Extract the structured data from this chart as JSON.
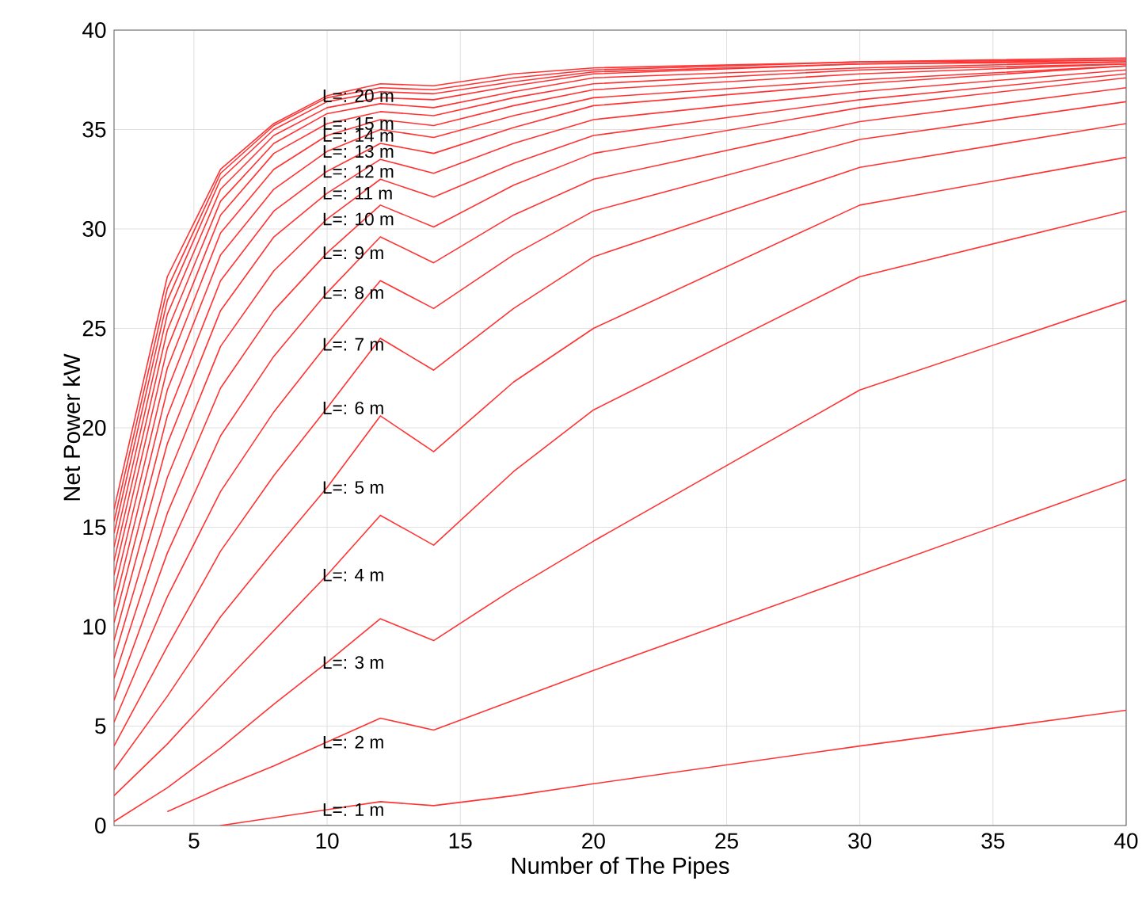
{
  "chart_data": {
    "type": "line",
    "xlabel": "Number of The Pipes",
    "ylabel": "Net Power kW",
    "xlim": [
      2,
      40
    ],
    "xticks": [
      5,
      10,
      15,
      20,
      25,
      30,
      35,
      40
    ],
    "ylim": [
      0,
      40
    ],
    "yticks": [
      0,
      5,
      10,
      15,
      20,
      25,
      30,
      35,
      40
    ],
    "grid": true,
    "legend": false,
    "marker": "none",
    "line_style": "solid",
    "series": [
      {
        "name": "L=: 1 m",
        "color": "#ff3333",
        "x": [
          6,
          8,
          10,
          12,
          14,
          17,
          20,
          30,
          40
        ],
        "values": [
          0.0,
          0.4,
          0.8,
          1.2,
          1.0,
          1.5,
          2.1,
          4.0,
          5.8
        ]
      },
      {
        "name": "L=: 2 m",
        "color": "#ff3333",
        "x": [
          4,
          6,
          8,
          10,
          12,
          14,
          17,
          20,
          30,
          40
        ],
        "values": [
          0.7,
          1.9,
          3.0,
          4.2,
          5.4,
          4.8,
          6.3,
          7.8,
          12.6,
          17.4
        ]
      },
      {
        "name": "L=: 3 m",
        "color": "#ff3333",
        "x": [
          2,
          4,
          6,
          8,
          10,
          12,
          14,
          17,
          20,
          30,
          40
        ],
        "values": [
          0.2,
          1.9,
          3.9,
          6.1,
          8.2,
          10.4,
          9.3,
          11.9,
          14.3,
          21.9,
          26.4
        ]
      },
      {
        "name": "L=: 4 m",
        "color": "#ff3333",
        "x": [
          2,
          4,
          6,
          8,
          10,
          12,
          14,
          17,
          20,
          30,
          40
        ],
        "values": [
          1.5,
          4.1,
          7.0,
          9.8,
          12.6,
          15.6,
          14.1,
          17.8,
          20.9,
          27.6,
          30.9
        ]
      },
      {
        "name": "L=: 5 m",
        "color": "#ff3333",
        "x": [
          2,
          4,
          6,
          8,
          10,
          12,
          14,
          17,
          20,
          30,
          40
        ],
        "values": [
          2.8,
          6.5,
          10.5,
          13.8,
          17.0,
          20.6,
          18.8,
          22.3,
          25.0,
          31.2,
          33.6
        ]
      },
      {
        "name": "L=: 6 m",
        "color": "#ff3333",
        "x": [
          2,
          4,
          6,
          8,
          10,
          12,
          14,
          17,
          20,
          30,
          40
        ],
        "values": [
          4.0,
          9.0,
          13.8,
          17.6,
          21.0,
          24.5,
          22.9,
          26.0,
          28.6,
          33.1,
          35.3
        ]
      },
      {
        "name": "L=: 7 m",
        "color": "#ff3333",
        "x": [
          2,
          4,
          6,
          8,
          10,
          12,
          14,
          17,
          20,
          30,
          40
        ],
        "values": [
          5.2,
          11.5,
          16.8,
          20.8,
          24.2,
          27.4,
          26.0,
          28.7,
          30.9,
          34.5,
          36.4
        ]
      },
      {
        "name": "L=: 8 m",
        "color": "#ff3333",
        "x": [
          2,
          4,
          6,
          8,
          10,
          12,
          14,
          17,
          20,
          30,
          40
        ],
        "values": [
          6.3,
          13.7,
          19.6,
          23.6,
          26.8,
          29.6,
          28.3,
          30.7,
          32.5,
          35.4,
          37.1
        ]
      },
      {
        "name": "L=: 9 m",
        "color": "#ff3333",
        "x": [
          2,
          4,
          6,
          8,
          10,
          12,
          14,
          17,
          20,
          30,
          40
        ],
        "values": [
          7.4,
          15.7,
          22.0,
          25.9,
          28.8,
          31.2,
          30.1,
          32.2,
          33.8,
          36.1,
          37.6
        ]
      },
      {
        "name": "L=: 10 m",
        "color": "#ff3333",
        "x": [
          2,
          4,
          6,
          8,
          10,
          12,
          14,
          17,
          20,
          30,
          40
        ],
        "values": [
          8.4,
          17.5,
          24.1,
          27.9,
          30.5,
          32.5,
          31.6,
          33.3,
          34.7,
          36.5,
          37.8
        ]
      },
      {
        "name": "L=: 11 m",
        "color": "#ff3333",
        "x": [
          2,
          4,
          6,
          8,
          10,
          12,
          14,
          17,
          20,
          30,
          40
        ],
        "values": [
          9.3,
          19.2,
          25.9,
          29.6,
          31.8,
          33.5,
          32.8,
          34.3,
          35.5,
          36.9,
          38.0
        ]
      },
      {
        "name": "L=: 12 m",
        "color": "#ff3333",
        "x": [
          2,
          4,
          6,
          8,
          10,
          12,
          14,
          17,
          20,
          30,
          40
        ],
        "values": [
          10.2,
          20.6,
          27.4,
          30.9,
          32.9,
          34.3,
          33.8,
          35.1,
          36.2,
          37.3,
          38.2
        ]
      },
      {
        "name": "L=: 13 m",
        "color": "#ff3333",
        "x": [
          2,
          4,
          6,
          8,
          10,
          12,
          14,
          17,
          20,
          30,
          40
        ],
        "values": [
          11.0,
          21.9,
          28.7,
          32.0,
          33.9,
          35.0,
          34.6,
          35.7,
          36.6,
          37.5,
          38.2
        ]
      },
      {
        "name": "L=: 14 m",
        "color": "#ff3333",
        "x": [
          2,
          4,
          6,
          8,
          10,
          12,
          14,
          17,
          20,
          30,
          40
        ],
        "values": [
          11.8,
          23.0,
          29.8,
          33.0,
          34.7,
          35.5,
          35.2,
          36.2,
          37.0,
          37.8,
          38.3
        ]
      },
      {
        "name": "L=: 15 m",
        "color": "#ff3333",
        "x": [
          2,
          4,
          6,
          8,
          10,
          12,
          14,
          17,
          20,
          30,
          40
        ],
        "values": [
          12.6,
          24.0,
          30.7,
          33.8,
          35.3,
          35.9,
          35.7,
          36.6,
          37.3,
          38.0,
          38.3
        ]
      },
      {
        "color": "#ff3333",
        "x": [
          2,
          4,
          6,
          8,
          10,
          12,
          14,
          17,
          20,
          30,
          40
        ],
        "values": [
          13.3,
          24.9,
          31.4,
          34.3,
          35.8,
          36.3,
          36.1,
          36.9,
          37.6,
          38.1,
          38.4
        ]
      },
      {
        "color": "#ff3333",
        "x": [
          2,
          4,
          6,
          8,
          10,
          12,
          14,
          17,
          20,
          30,
          40
        ],
        "values": [
          14.0,
          25.7,
          32.0,
          34.7,
          36.1,
          36.6,
          36.5,
          37.2,
          37.8,
          38.3,
          38.4
        ]
      },
      {
        "color": "#ff3333",
        "x": [
          2,
          4,
          6,
          8,
          10,
          12,
          14,
          17,
          20,
          30,
          40
        ],
        "values": [
          14.7,
          26.4,
          32.5,
          35.0,
          36.4,
          36.9,
          36.8,
          37.4,
          37.9,
          38.3,
          38.5
        ]
      },
      {
        "color": "#ff3333",
        "x": [
          2,
          4,
          6,
          8,
          10,
          12,
          14,
          17,
          20,
          30,
          40
        ],
        "values": [
          15.3,
          27.0,
          32.8,
          35.2,
          36.6,
          37.1,
          37.0,
          37.6,
          38.0,
          38.4,
          38.5
        ]
      },
      {
        "name": "L=: 20 m",
        "color": "#ff3333",
        "x": [
          2,
          4,
          6,
          8,
          10,
          12,
          14,
          17,
          20,
          30,
          40
        ],
        "values": [
          15.9,
          27.6,
          33.0,
          35.3,
          36.7,
          37.3,
          37.2,
          37.8,
          38.1,
          38.4,
          38.6
        ]
      }
    ]
  }
}
